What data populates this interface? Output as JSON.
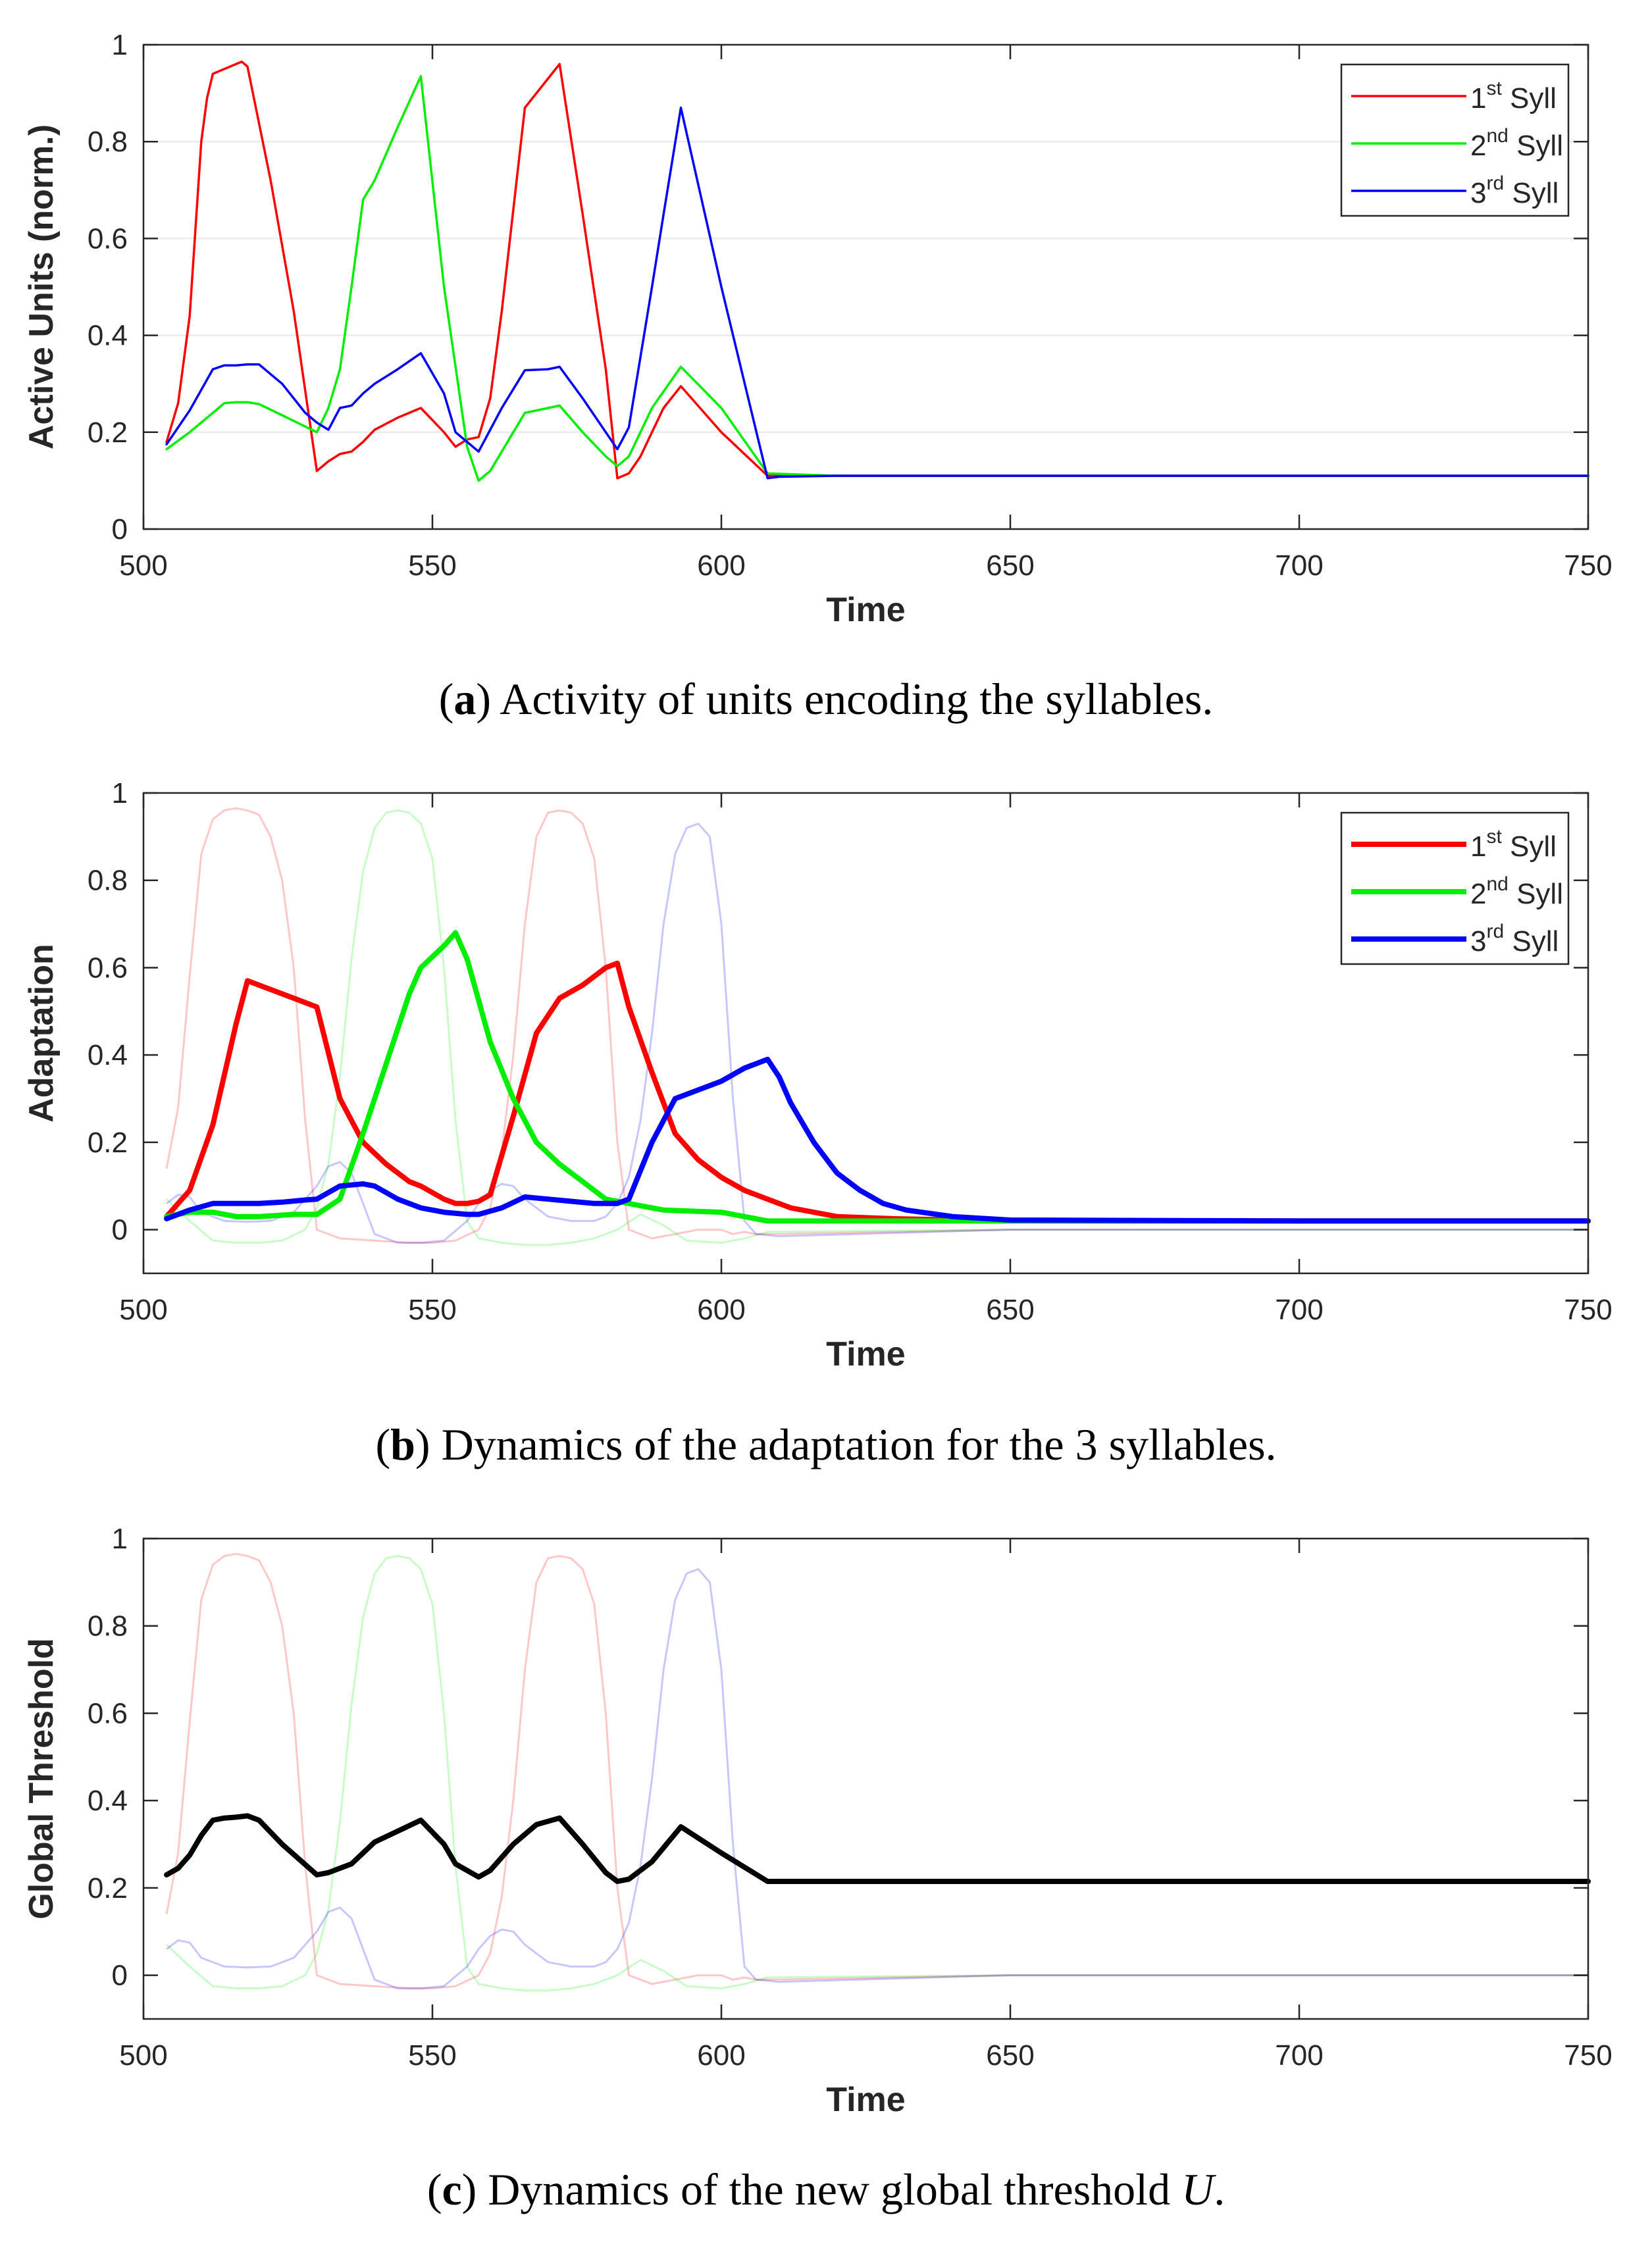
{
  "chart_data": [
    {
      "type": "line",
      "caption": {
        "label": "a",
        "text": ") Activity of units encoding the syllables."
      },
      "xlabel": "Time",
      "ylabel": "Active Units (norm.)",
      "xlim": [
        500,
        750
      ],
      "ylim": [
        0,
        1
      ],
      "xticks": [
        500,
        550,
        600,
        650,
        700,
        750
      ],
      "yticks": [
        0,
        0.2,
        0.4,
        0.6,
        0.8,
        1
      ],
      "ytick_labels": [
        "0",
        "0.2",
        "0.4",
        "0.6",
        "0.8",
        "1"
      ],
      "grid": "y",
      "legend_position": "top-right",
      "series": [
        {
          "name": "1st Syll",
          "label_base": "1",
          "label_sup": "st",
          "label_rest": " Syll",
          "color": "#ff0000",
          "weight": "thin",
          "x": [
            504,
            506,
            508,
            510,
            511,
            512,
            514,
            516,
            517,
            518,
            522,
            526,
            530,
            532,
            534,
            536,
            538,
            540,
            544,
            548,
            552,
            554,
            556,
            558,
            560,
            562,
            566,
            570,
            572,
            576,
            580,
            582,
            584,
            586,
            588,
            590,
            593,
            600,
            608,
            620,
            650,
            700,
            750
          ],
          "y": [
            0.18,
            0.26,
            0.44,
            0.8,
            0.89,
            0.94,
            0.95,
            0.96,
            0.965,
            0.955,
            0.72,
            0.45,
            0.12,
            0.14,
            0.155,
            0.16,
            0.18,
            0.205,
            0.23,
            0.25,
            0.2,
            0.17,
            0.185,
            0.19,
            0.27,
            0.45,
            0.87,
            0.93,
            0.96,
            0.65,
            0.33,
            0.105,
            0.115,
            0.15,
            0.2,
            0.25,
            0.295,
            0.2,
            0.11,
            0.11,
            0.11,
            0.11,
            0.11
          ]
        },
        {
          "name": "2nd Syll",
          "label_base": "2",
          "label_sup": "nd",
          "label_rest": " Syll",
          "color": "#00ee00",
          "weight": "thin",
          "x": [
            504,
            508,
            512,
            514,
            516,
            518,
            520,
            524,
            530,
            532,
            534,
            536,
            538,
            540,
            544,
            548,
            552,
            556,
            558,
            560,
            564,
            566,
            570,
            572,
            576,
            580,
            582,
            584,
            588,
            593,
            600,
            608,
            620,
            650,
            700,
            750
          ],
          "y": [
            0.165,
            0.2,
            0.24,
            0.26,
            0.262,
            0.262,
            0.258,
            0.235,
            0.2,
            0.25,
            0.33,
            0.5,
            0.68,
            0.72,
            0.83,
            0.935,
            0.5,
            0.17,
            0.1,
            0.12,
            0.2,
            0.24,
            0.25,
            0.255,
            0.2,
            0.15,
            0.13,
            0.15,
            0.25,
            0.335,
            0.25,
            0.115,
            0.11,
            0.11,
            0.11,
            0.11
          ]
        },
        {
          "name": "3rd Syll",
          "label_base": "3",
          "label_sup": "rd",
          "label_rest": " Syll",
          "color": "#0000ff",
          "weight": "thin",
          "x": [
            504,
            508,
            512,
            514,
            516,
            518,
            520,
            524,
            528,
            530,
            532,
            534,
            536,
            538,
            540,
            544,
            548,
            552,
            554,
            556,
            558,
            562,
            566,
            570,
            572,
            576,
            580,
            582,
            584,
            588,
            590,
            593,
            600,
            608,
            610,
            620,
            650,
            700,
            750
          ],
          "y": [
            0.175,
            0.245,
            0.33,
            0.338,
            0.338,
            0.34,
            0.34,
            0.3,
            0.24,
            0.22,
            0.205,
            0.25,
            0.255,
            0.28,
            0.3,
            0.33,
            0.363,
            0.28,
            0.2,
            0.18,
            0.16,
            0.25,
            0.328,
            0.33,
            0.335,
            0.27,
            0.2,
            0.165,
            0.21,
            0.5,
            0.65,
            0.87,
            0.5,
            0.105,
            0.108,
            0.11,
            0.11,
            0.11,
            0.11
          ]
        }
      ]
    },
    {
      "type": "line",
      "caption": {
        "label": "b",
        "text": ") Dynamics of the adaptation for the 3 syllables."
      },
      "xlabel": "Time",
      "ylabel": "Adaptation",
      "xlim": [
        500,
        750
      ],
      "ylim": [
        -0.1,
        1
      ],
      "xticks": [
        500,
        550,
        600,
        650,
        700,
        750
      ],
      "yticks": [
        0,
        0.2,
        0.4,
        0.6,
        0.8,
        1
      ],
      "ytick_labels": [
        "0",
        "0.2",
        "0.4",
        "0.6",
        "0.8",
        "1"
      ],
      "grid": "none",
      "legend_position": "top-right",
      "series": [
        {
          "name": "1st Syll",
          "label_base": "1",
          "label_sup": "st",
          "label_rest": " Syll",
          "color": "#ff0000",
          "weight": "thick",
          "x": [
            504,
            508,
            512,
            516,
            518,
            522,
            526,
            530,
            534,
            538,
            542,
            546,
            548,
            552,
            554,
            556,
            558,
            560,
            564,
            568,
            572,
            576,
            580,
            582,
            584,
            588,
            592,
            596,
            600,
            604,
            608,
            612,
            620,
            630,
            650,
            700,
            750
          ],
          "y": [
            0.03,
            0.09,
            0.24,
            0.47,
            0.57,
            0.55,
            0.53,
            0.51,
            0.3,
            0.2,
            0.15,
            0.11,
            0.1,
            0.07,
            0.06,
            0.06,
            0.065,
            0.08,
            0.26,
            0.45,
            0.53,
            0.56,
            0.6,
            0.61,
            0.51,
            0.36,
            0.22,
            0.16,
            0.12,
            0.09,
            0.07,
            0.05,
            0.03,
            0.025,
            0.02,
            0.02,
            0.02
          ]
        },
        {
          "name": "2nd Syll",
          "label_base": "2",
          "label_sup": "nd",
          "label_rest": " Syll",
          "color": "#00ee00",
          "weight": "thick",
          "x": [
            504,
            508,
            512,
            516,
            520,
            526,
            530,
            534,
            538,
            542,
            546,
            548,
            552,
            554,
            556,
            560,
            564,
            568,
            572,
            576,
            580,
            584,
            590,
            600,
            608,
            620,
            650,
            700,
            750
          ],
          "y": [
            0.03,
            0.04,
            0.04,
            0.03,
            0.03,
            0.035,
            0.035,
            0.07,
            0.22,
            0.38,
            0.54,
            0.6,
            0.65,
            0.68,
            0.62,
            0.43,
            0.3,
            0.2,
            0.15,
            0.11,
            0.07,
            0.06,
            0.045,
            0.04,
            0.02,
            0.02,
            0.02,
            0.02,
            0.02
          ]
        },
        {
          "name": "3rd Syll",
          "label_base": "3",
          "label_sup": "rd",
          "label_rest": " Syll",
          "color": "#0000ff",
          "weight": "thick",
          "x": [
            504,
            508,
            512,
            516,
            520,
            524,
            528,
            530,
            534,
            538,
            540,
            544,
            548,
            552,
            556,
            558,
            562,
            566,
            570,
            574,
            578,
            582,
            584,
            588,
            592,
            596,
            600,
            604,
            608,
            610,
            612,
            616,
            620,
            624,
            628,
            632,
            640,
            650,
            700,
            750
          ],
          "y": [
            0.025,
            0.045,
            0.06,
            0.06,
            0.06,
            0.063,
            0.068,
            0.07,
            0.1,
            0.105,
            0.1,
            0.07,
            0.05,
            0.04,
            0.035,
            0.035,
            0.05,
            0.075,
            0.07,
            0.065,
            0.06,
            0.06,
            0.07,
            0.2,
            0.3,
            0.32,
            0.34,
            0.37,
            0.39,
            0.35,
            0.29,
            0.2,
            0.13,
            0.09,
            0.06,
            0.045,
            0.03,
            0.022,
            0.02,
            0.02
          ]
        }
      ]
    },
    {
      "type": "line",
      "caption": {
        "label": "c",
        "text": ") Dynamics of the new global threshold ",
        "symbol": "U",
        "end": "."
      },
      "xlabel": "Time",
      "ylabel": "Global Threshold",
      "xlim": [
        500,
        750
      ],
      "ylim": [
        -0.1,
        1
      ],
      "xticks": [
        500,
        550,
        600,
        650,
        700,
        750
      ],
      "yticks": [
        0,
        0.2,
        0.4,
        0.6,
        0.8,
        1
      ],
      "ytick_labels": [
        "0",
        "0.2",
        "0.4",
        "0.6",
        "0.8",
        "1"
      ],
      "grid": "none",
      "legend_position": "none",
      "series": [
        {
          "color": "#000000",
          "weight": "thick",
          "x": [
            504,
            506,
            508,
            510,
            512,
            514,
            516,
            518,
            520,
            524,
            530,
            532,
            534,
            536,
            538,
            540,
            544,
            548,
            552,
            554,
            556,
            558,
            560,
            564,
            568,
            572,
            576,
            580,
            582,
            584,
            588,
            593,
            600,
            608,
            620,
            650,
            700,
            750
          ],
          "y": [
            0.23,
            0.245,
            0.275,
            0.32,
            0.355,
            0.36,
            0.362,
            0.365,
            0.355,
            0.3,
            0.23,
            0.235,
            0.245,
            0.255,
            0.28,
            0.305,
            0.33,
            0.355,
            0.3,
            0.255,
            0.24,
            0.225,
            0.24,
            0.3,
            0.345,
            0.36,
            0.3,
            0.235,
            0.215,
            0.22,
            0.26,
            0.34,
            0.28,
            0.215,
            0.215,
            0.215,
            0.215,
            0.215
          ]
        }
      ]
    }
  ],
  "background_activity": {
    "note_colors": {
      "red": "#ff0000",
      "green": "#00ee00",
      "blue": "#0000ff"
    },
    "red": {
      "x": [
        504,
        506,
        508,
        510,
        512,
        514,
        516,
        518,
        520,
        522,
        524,
        526,
        528,
        530,
        534,
        540,
        546,
        550,
        554,
        558,
        560,
        562,
        564,
        566,
        568,
        570,
        572,
        574,
        576,
        578,
        580,
        582,
        584,
        588,
        592,
        596,
        600,
        602,
        604,
        606,
        610,
        650,
        700,
        750
      ],
      "y": [
        0.14,
        0.28,
        0.58,
        0.86,
        0.94,
        0.96,
        0.965,
        0.96,
        0.95,
        0.9,
        0.8,
        0.6,
        0.25,
        0.0,
        -0.02,
        -0.025,
        -0.03,
        -0.03,
        -0.025,
        0.0,
        0.05,
        0.18,
        0.4,
        0.7,
        0.9,
        0.955,
        0.96,
        0.955,
        0.93,
        0.85,
        0.6,
        0.2,
        0.0,
        -0.02,
        -0.01,
        0.0,
        0.0,
        -0.01,
        -0.005,
        -0.01,
        -0.01,
        0.0,
        0.0,
        0.0
      ]
    },
    "green": {
      "x": [
        504,
        508,
        512,
        516,
        520,
        524,
        528,
        530,
        532,
        534,
        536,
        538,
        540,
        542,
        544,
        546,
        548,
        550,
        552,
        554,
        556,
        558,
        562,
        566,
        570,
        574,
        578,
        582,
        586,
        590,
        594,
        600,
        604,
        608,
        650,
        700,
        750
      ],
      "y": [
        0.07,
        0.02,
        -0.025,
        -0.03,
        -0.03,
        -0.025,
        0.0,
        0.05,
        0.15,
        0.35,
        0.62,
        0.82,
        0.92,
        0.955,
        0.96,
        0.955,
        0.93,
        0.85,
        0.6,
        0.25,
        0.02,
        -0.02,
        -0.03,
        -0.035,
        -0.035,
        -0.03,
        -0.02,
        0.0,
        0.035,
        0.01,
        -0.025,
        -0.03,
        -0.02,
        -0.005,
        0.0,
        0.0,
        0.0
      ]
    },
    "blue": {
      "x": [
        504,
        506,
        508,
        510,
        514,
        518,
        522,
        526,
        530,
        532,
        534,
        536,
        538,
        540,
        544,
        548,
        552,
        556,
        558,
        560,
        562,
        564,
        566,
        570,
        574,
        578,
        580,
        582,
        584,
        586,
        588,
        590,
        592,
        594,
        596,
        598,
        600,
        602,
        604,
        606,
        610,
        650,
        700,
        750
      ],
      "y": [
        0.06,
        0.08,
        0.075,
        0.04,
        0.02,
        0.018,
        0.02,
        0.04,
        0.1,
        0.145,
        0.155,
        0.13,
        0.06,
        -0.01,
        -0.03,
        -0.03,
        -0.025,
        0.02,
        0.06,
        0.09,
        0.105,
        0.1,
        0.07,
        0.03,
        0.02,
        0.02,
        0.03,
        0.06,
        0.12,
        0.25,
        0.45,
        0.7,
        0.86,
        0.92,
        0.93,
        0.9,
        0.7,
        0.3,
        0.02,
        -0.01,
        -0.015,
        0.0,
        0.0,
        0.0
      ]
    }
  }
}
